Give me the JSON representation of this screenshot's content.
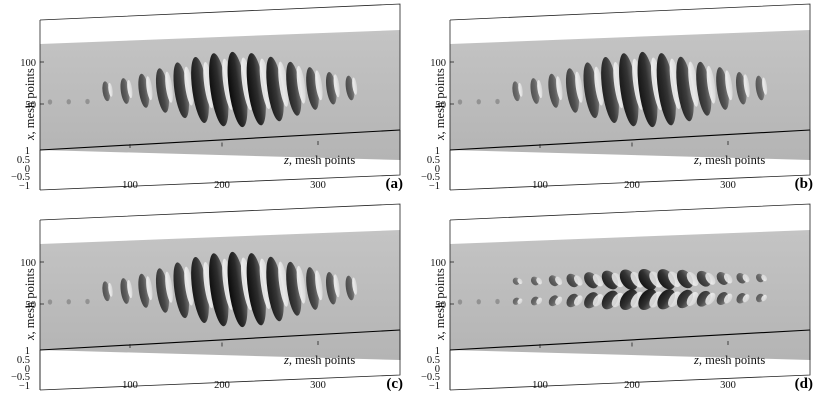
{
  "figure": {
    "panels": [
      {
        "label": "(a)",
        "style": "plain"
      },
      {
        "label": "(b)",
        "style": "sparse"
      },
      {
        "label": "(c)",
        "style": "plain"
      },
      {
        "label": "(d)",
        "style": "cross"
      }
    ],
    "x_axis_label_var": "x",
    "x_axis_label_text": ", mesh points",
    "z_axis_label_var": "z",
    "z_axis_label_text": ", mesh points",
    "x_ticks": [
      "100",
      "50"
    ],
    "z_ticks": [
      "100",
      "200",
      "300"
    ],
    "v_ticks": [
      "1",
      "0.5",
      "0",
      "−0.5",
      "−1"
    ]
  }
}
